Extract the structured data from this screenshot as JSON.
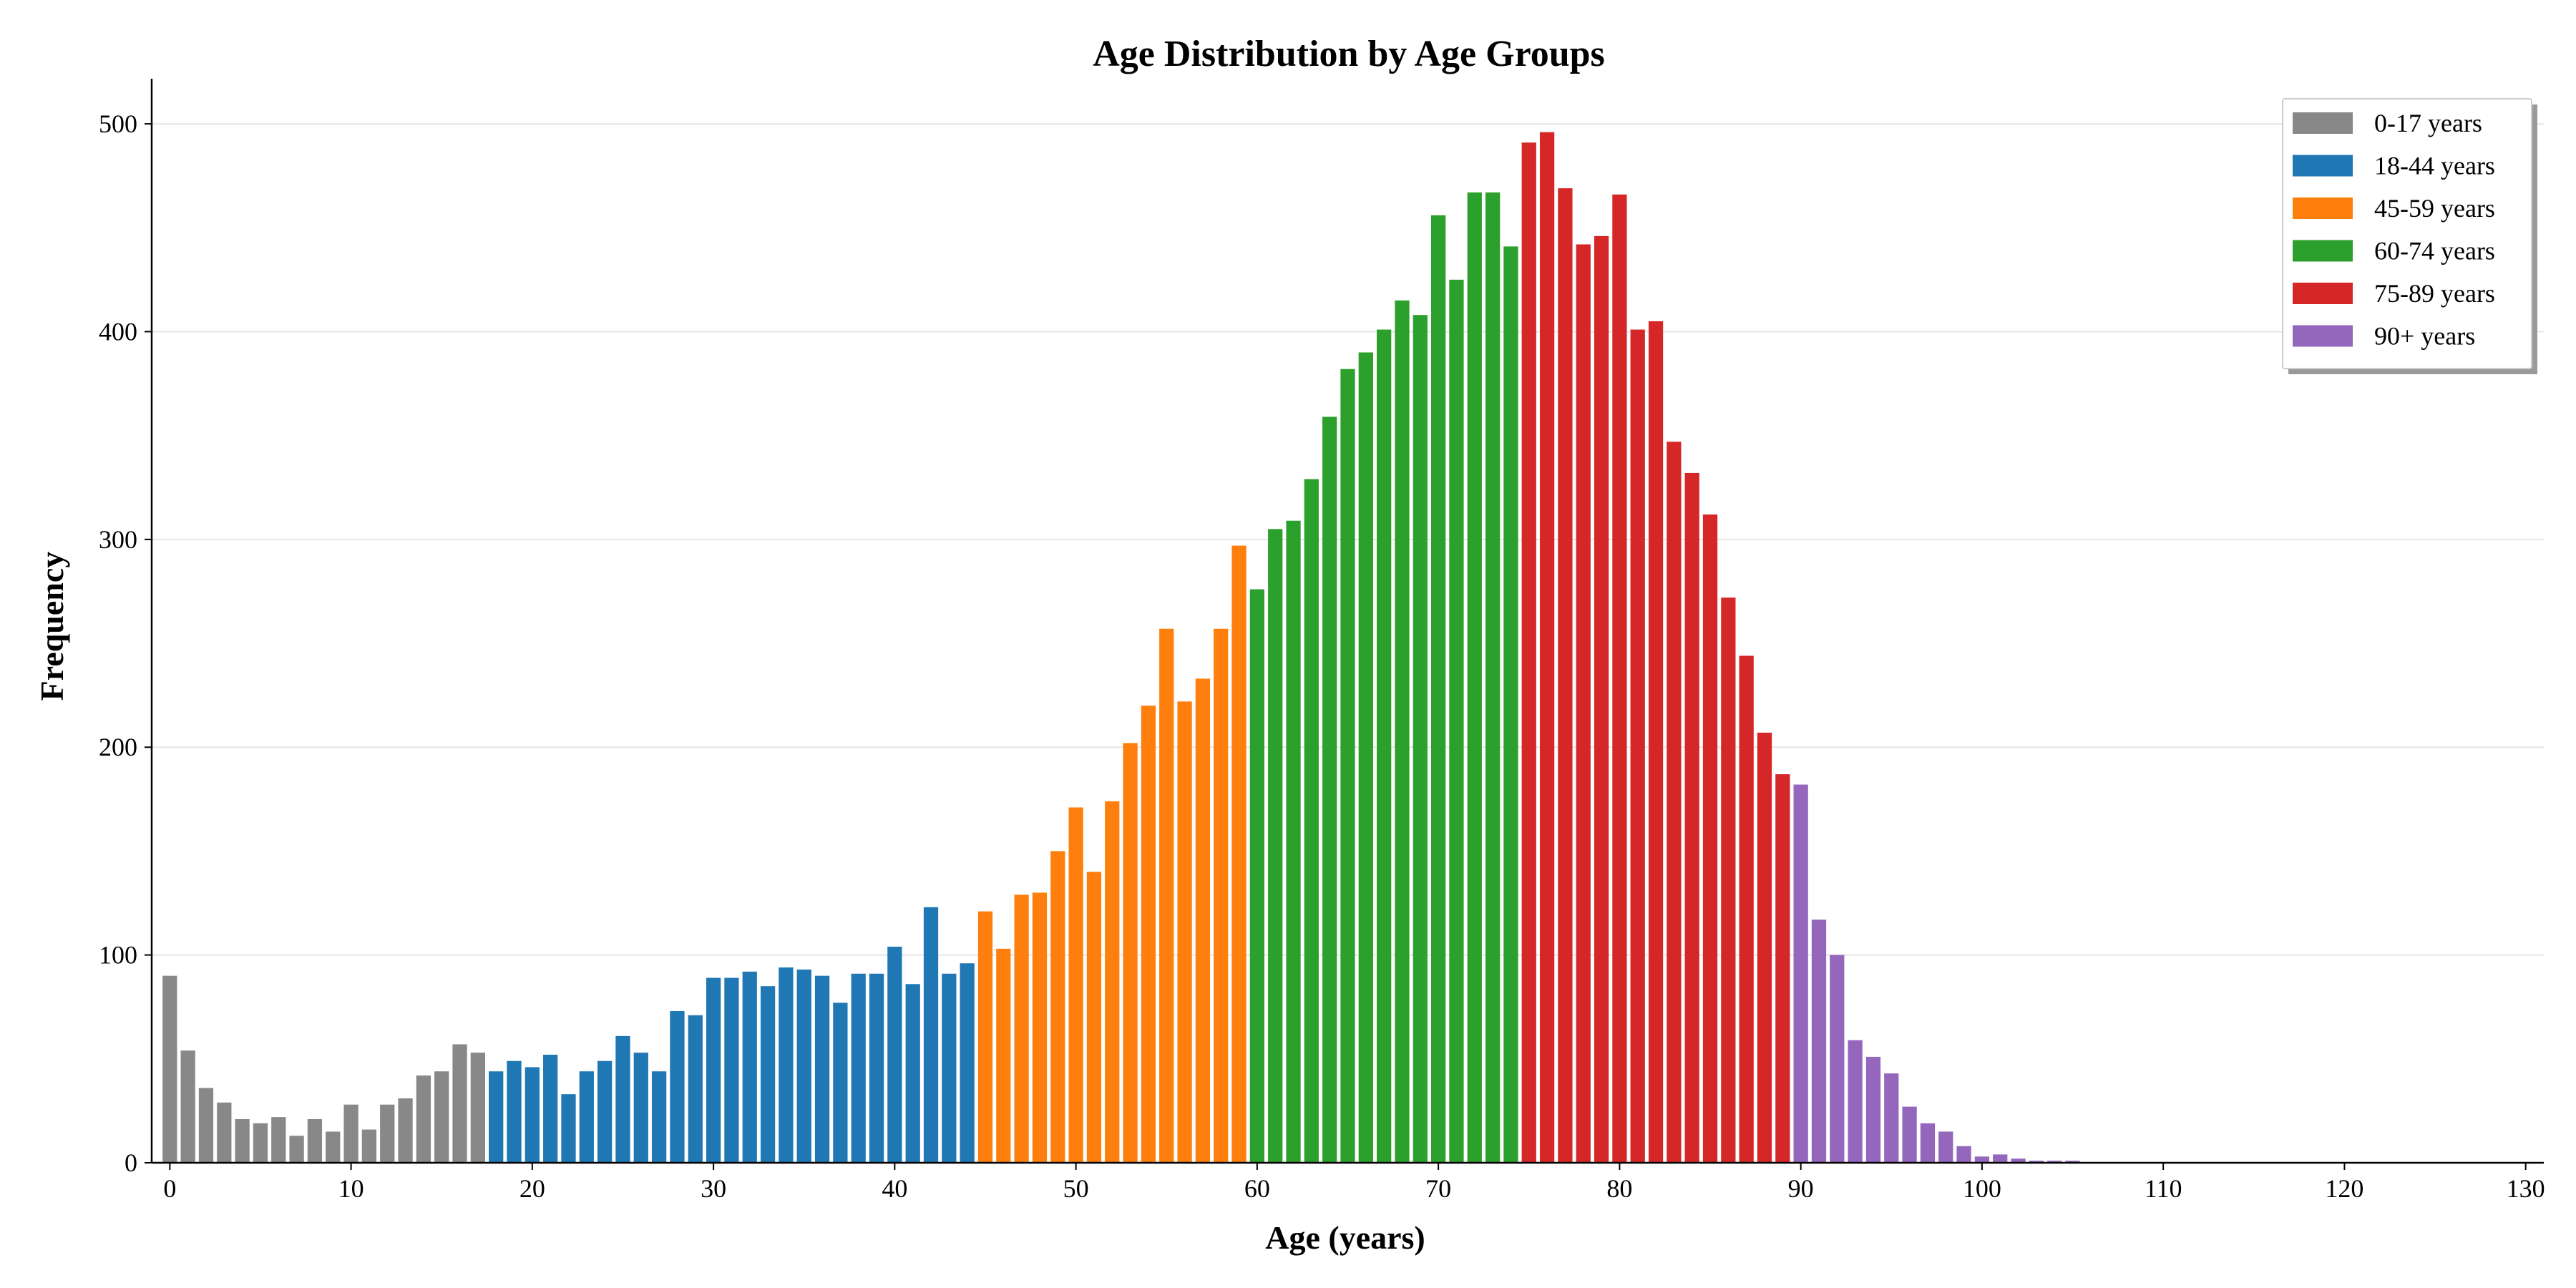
{
  "chart_data": {
    "type": "bar",
    "title": "Age Distribution by Age Groups",
    "xlabel": "Age (years)",
    "ylabel": "Frequency",
    "xlim": [
      -1,
      131
    ],
    "ylim": [
      0,
      520
    ],
    "xticks": [
      0,
      10,
      20,
      30,
      40,
      50,
      60,
      70,
      80,
      90,
      100,
      110,
      120,
      130
    ],
    "yticks": [
      0,
      100,
      200,
      300,
      400,
      500
    ],
    "grid": "y",
    "legend_position": "top-right",
    "series": [
      {
        "name": "0-17 years",
        "color": "#888888",
        "x": [
          0,
          1,
          2,
          3,
          4,
          5,
          6,
          7,
          8,
          9,
          10,
          11,
          12,
          13,
          14,
          15,
          16,
          17
        ],
        "values": [
          90,
          54,
          36,
          29,
          21,
          19,
          22,
          13,
          21,
          15,
          28,
          16,
          28,
          31,
          42,
          44,
          57,
          53
        ]
      },
      {
        "name": "18-44 years",
        "color": "#1f77b4",
        "x": [
          18,
          19,
          20,
          21,
          22,
          23,
          24,
          25,
          26,
          27,
          28,
          29,
          30,
          31,
          32,
          33,
          34,
          35,
          36,
          37,
          38,
          39,
          40,
          41,
          42,
          43,
          44
        ],
        "values": [
          44,
          49,
          46,
          52,
          33,
          44,
          49,
          61,
          53,
          44,
          73,
          71,
          89,
          89,
          92,
          85,
          94,
          93,
          90,
          77,
          91,
          91,
          104,
          86,
          123,
          91,
          96
        ]
      },
      {
        "name": "45-59 years",
        "color": "#ff7f0e",
        "x": [
          45,
          46,
          47,
          48,
          49,
          50,
          51,
          52,
          53,
          54,
          55,
          56,
          57,
          58,
          59
        ],
        "values": [
          121,
          103,
          129,
          130,
          150,
          171,
          140,
          174,
          202,
          220,
          257,
          222,
          233,
          257,
          297
        ]
      },
      {
        "name": "60-74 years",
        "color": "#2ca02c",
        "x": [
          60,
          61,
          62,
          63,
          64,
          65,
          66,
          67,
          68,
          69,
          70,
          71,
          72,
          73,
          74
        ],
        "values": [
          276,
          305,
          309,
          329,
          359,
          382,
          390,
          401,
          415,
          408,
          456,
          425,
          467,
          467,
          441
        ]
      },
      {
        "name": "75-89 years",
        "color": "#d62728",
        "x": [
          75,
          76,
          77,
          78,
          79,
          80,
          81,
          82,
          83,
          84,
          85,
          86,
          87,
          88,
          89
        ],
        "values": [
          491,
          496,
          469,
          442,
          446,
          466,
          401,
          405,
          347,
          332,
          312,
          272,
          244,
          207,
          187
        ]
      },
      {
        "name": "90+ years",
        "color": "#9467bd",
        "x": [
          90,
          91,
          92,
          93,
          94,
          95,
          96,
          97,
          98,
          99,
          100,
          101,
          102,
          103,
          104,
          105
        ],
        "values": [
          182,
          117,
          100,
          59,
          51,
          43,
          27,
          19,
          15,
          8,
          3,
          4,
          2,
          1,
          1,
          1
        ]
      }
    ]
  }
}
